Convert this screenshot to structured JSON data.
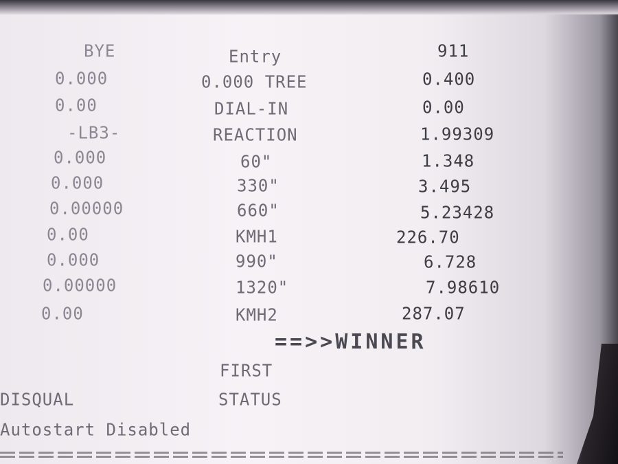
{
  "header": {
    "left": "BYE",
    "middle": "Entry",
    "right": "911"
  },
  "rows": [
    {
      "left": "0.000",
      "label": "0.000 TREE",
      "right": "0.400"
    },
    {
      "left": "0.00",
      "label": "DIAL-IN",
      "right": "0.00"
    },
    {
      "left": "-LB3-",
      "label": "REACTION",
      "right": "1.99309"
    },
    {
      "left": "0.000",
      "label": "60\"",
      "right": "1.348"
    },
    {
      "left": "0.000",
      "label": "330\"",
      "right": "3.495"
    },
    {
      "left": "0.00000",
      "label": "660\"",
      "right": "5.23428"
    },
    {
      "left": "0.00",
      "label": "KMH1",
      "right": "226.70"
    },
    {
      "left": "0.000",
      "label": "990\"",
      "right": "6.728"
    },
    {
      "left": "0.00000",
      "label": "1320\"",
      "right": "7.98610"
    },
    {
      "left": "0.00",
      "label": "KMH2",
      "right": "287.07"
    }
  ],
  "winner": "==>>WINNER",
  "first": "FIRST",
  "disqual": "DISQUAL",
  "status": "STATUS",
  "autostart": "Autostart Disabled"
}
